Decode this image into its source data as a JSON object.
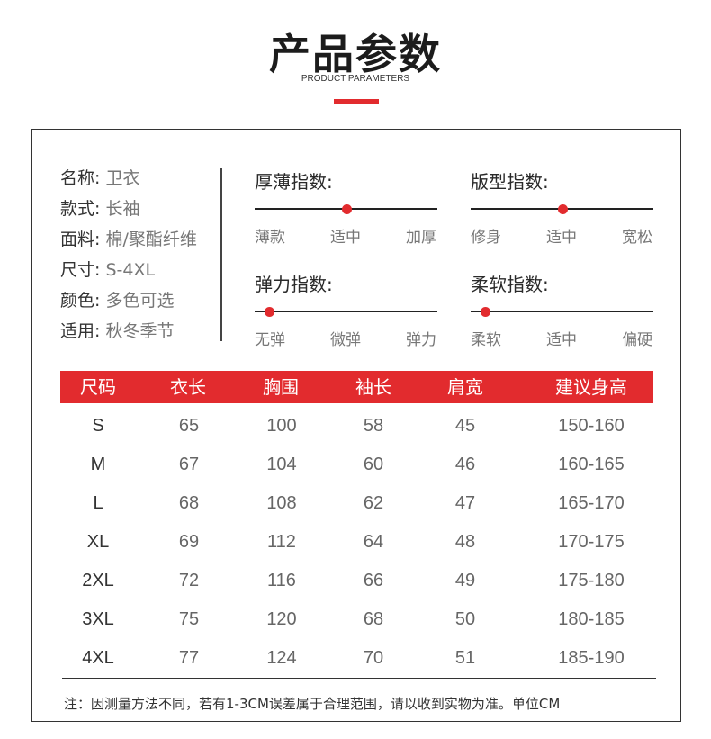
{
  "header": {
    "title": "产品参数",
    "subtitle": "PRODUCT PARAMETERS",
    "accent_color": "#e22b2e"
  },
  "specs": [
    {
      "key": "名称:",
      "value": "卫衣"
    },
    {
      "key": "款式:",
      "value": "长袖"
    },
    {
      "key": "面料:",
      "value": "棉/聚酯纤维"
    },
    {
      "key": "尺寸:",
      "value": "S-4XL"
    },
    {
      "key": "颜色:",
      "value": "多色可选"
    },
    {
      "key": "适用:",
      "value": "秋冬季节"
    }
  ],
  "indices": [
    {
      "title": "厚薄指数:",
      "labels": [
        "薄款",
        "适中",
        "加厚"
      ],
      "level": 0.5
    },
    {
      "title": "版型指数:",
      "labels": [
        "修身",
        "适中",
        "宽松"
      ],
      "level": 0.5
    },
    {
      "title": "弹力指数:",
      "labels": [
        "无弹",
        "微弹",
        "弹力"
      ],
      "level": 0.08
    },
    {
      "title": "柔软指数:",
      "labels": [
        "柔软",
        "适中",
        "偏硬"
      ],
      "level": 0.08
    }
  ],
  "size_table": {
    "headers": [
      "尺码",
      "衣长",
      "胸围",
      "袖长",
      "肩宽",
      "建议身高"
    ],
    "rows": [
      [
        "S",
        "65",
        "100",
        "58",
        "45",
        "150-160"
      ],
      [
        "M",
        "67",
        "104",
        "60",
        "46",
        "160-165"
      ],
      [
        "L",
        "68",
        "108",
        "62",
        "47",
        "165-170"
      ],
      [
        "XL",
        "69",
        "112",
        "64",
        "48",
        "170-175"
      ],
      [
        "2XL",
        "72",
        "116",
        "66",
        "49",
        "175-180"
      ],
      [
        "3XL",
        "75",
        "120",
        "68",
        "50",
        "180-185"
      ],
      [
        "4XL",
        "77",
        "124",
        "70",
        "51",
        "185-190"
      ]
    ]
  },
  "note": "注：因测量方法不同，若有1-3CM误差属于合理范围，请以收到实物为准。单位CM"
}
